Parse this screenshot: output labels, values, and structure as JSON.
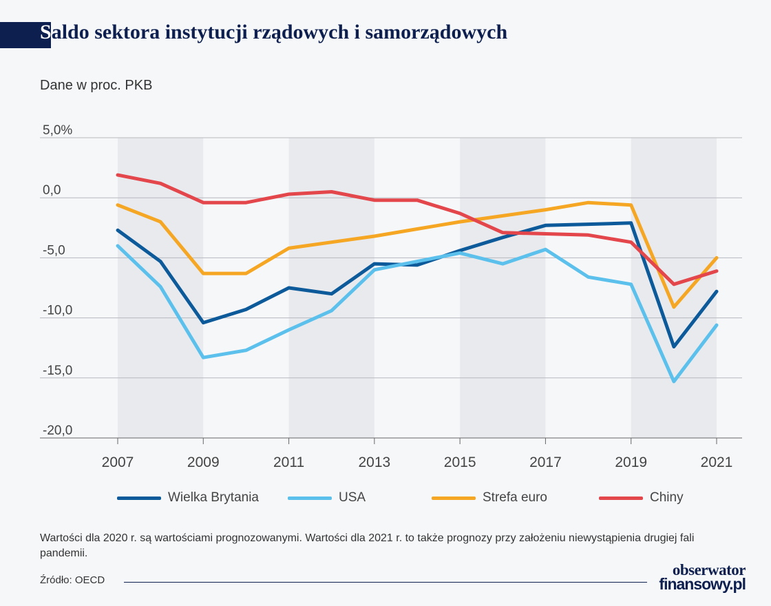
{
  "header": {
    "title_initial": "S",
    "title_rest": "aldo sektora instytucji rządowych i samorządowych",
    "subtitle": "Dane w proc. PKB"
  },
  "chart_data": {
    "type": "line",
    "x": [
      2007,
      2008,
      2009,
      2010,
      2011,
      2012,
      2013,
      2014,
      2015,
      2016,
      2017,
      2018,
      2019,
      2020,
      2021
    ],
    "xticks": [
      "2007",
      "2009",
      "2011",
      "2013",
      "2015",
      "2017",
      "2019",
      "2021"
    ],
    "ylim": [
      -20,
      5
    ],
    "yticks": [
      {
        "value": 5,
        "label": "5,0%"
      },
      {
        "value": 0,
        "label": "0,0"
      },
      {
        "value": -5,
        "label": "-5,0"
      },
      {
        "value": -10,
        "label": "-10,0"
      },
      {
        "value": -15,
        "label": "-15,0"
      },
      {
        "value": -20,
        "label": "-20,0"
      }
    ],
    "shaded_year_bands": [
      [
        2007,
        2009
      ],
      [
        2011,
        2013
      ],
      [
        2015,
        2017
      ],
      [
        2019,
        2021
      ]
    ],
    "grid": true,
    "legend_position": "bottom",
    "series": [
      {
        "name": "Wielka Brytania",
        "color": "#0d5a9a",
        "values": [
          -2.7,
          -5.3,
          -10.4,
          -9.3,
          -7.5,
          -8.0,
          -5.5,
          -5.6,
          -4.4,
          -3.3,
          -2.3,
          -2.2,
          -2.1,
          -12.4,
          -7.8
        ]
      },
      {
        "name": "USA",
        "color": "#5bc0eb",
        "values": [
          -4.0,
          -7.4,
          -13.3,
          -12.7,
          -11.0,
          -9.4,
          -6.0,
          -5.3,
          -4.6,
          -5.5,
          -4.3,
          -6.6,
          -7.2,
          -15.3,
          -10.6
        ]
      },
      {
        "name": "Strefa euro",
        "color": "#f5a623",
        "values": [
          -0.6,
          -2.0,
          -6.3,
          -6.3,
          -4.2,
          -3.7,
          -3.2,
          -2.6,
          -2.0,
          -1.5,
          -1.0,
          -0.4,
          -0.6,
          -9.1,
          -5.0
        ]
      },
      {
        "name": "Chiny",
        "color": "#e3464b",
        "values": [
          1.9,
          1.2,
          -0.4,
          -0.4,
          0.3,
          0.5,
          -0.2,
          -0.2,
          -1.3,
          -2.9,
          -3.0,
          -3.1,
          -3.7,
          -7.2,
          -6.1
        ]
      }
    ]
  },
  "footer": {
    "note": "Wartości dla 2020 r. są wartościami prognozowanymi. Wartości dla 2021 r. to także prognozy przy założeniu niewystąpienia drugiej fali pandemii.",
    "source": "Źródło: OECD",
    "logo_line1": "obserwator",
    "logo_line2": "finansowy.pl"
  }
}
